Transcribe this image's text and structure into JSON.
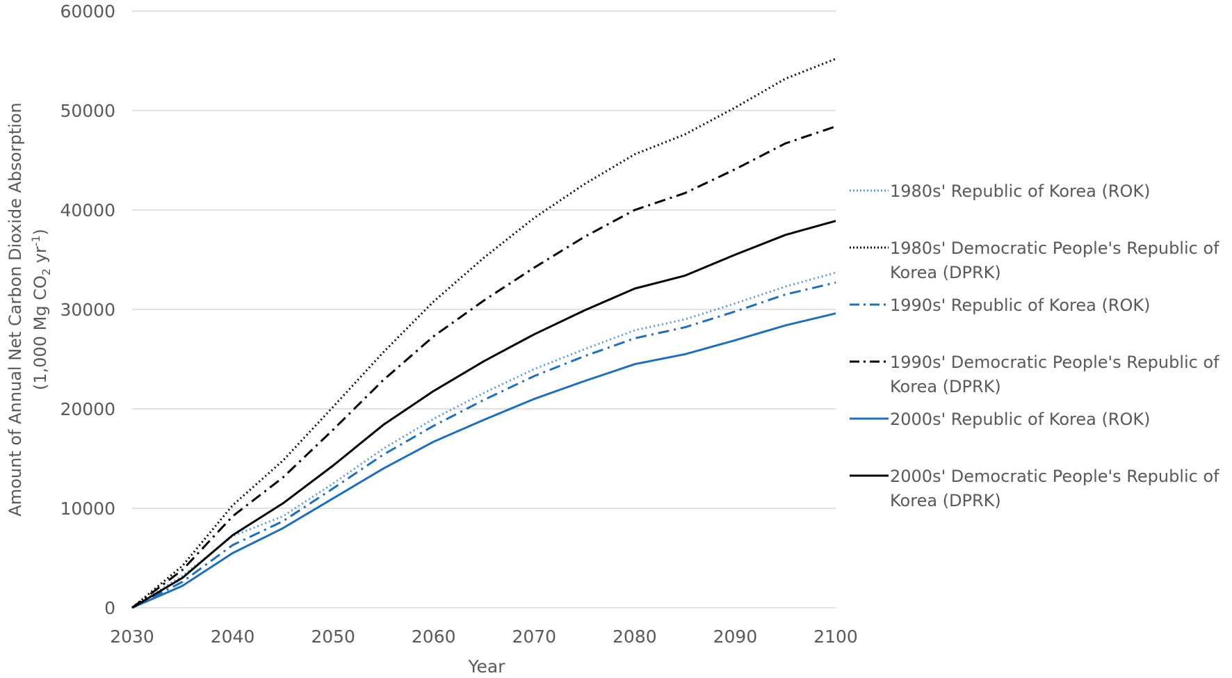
{
  "chart_data": {
    "type": "line",
    "title": "",
    "xlabel": "Year",
    "ylabel_line1": "Amount of Annual Net Carbon Dioxide Absorption",
    "ylabel_line2_pre": "(1,000 Mg CO",
    "ylabel_line2_sub": "2",
    "ylabel_line2_mid": " yr",
    "ylabel_line2_sup": "-1",
    "ylabel_line2_post": ")",
    "xlim": [
      2030,
      2100
    ],
    "ylim": [
      0,
      60000
    ],
    "x_ticks": [
      "2030",
      "2040",
      "2050",
      "2060",
      "2070",
      "2080",
      "2090",
      "2100"
    ],
    "y_ticks": [
      "0",
      "10000",
      "20000",
      "30000",
      "40000",
      "50000",
      "60000"
    ],
    "grid": true,
    "legend_position": "right",
    "x": [
      2030,
      2035,
      2040,
      2045,
      2050,
      2055,
      2060,
      2065,
      2070,
      2075,
      2080,
      2085,
      2090,
      2095,
      2100
    ],
    "series": [
      {
        "name": "1980s' Republic of Korea (ROK)",
        "color": "#5B9BD5",
        "dash": "dot",
        "values": [
          0,
          3200,
          7200,
          9200,
          12500,
          16000,
          19000,
          21600,
          24000,
          26000,
          27900,
          29000,
          30600,
          32300,
          33700
        ]
      },
      {
        "name": "1980s' Democratic People's Republic of Korea (DPRK)",
        "color": "#000000",
        "dash": "dot",
        "values": [
          0,
          4200,
          10300,
          14800,
          20200,
          25700,
          30800,
          35200,
          39200,
          42600,
          45600,
          47600,
          50300,
          53200,
          55200
        ]
      },
      {
        "name": "1990s' Republic of Korea (ROK)",
        "color": "#1F6FB8",
        "dash": "dashdot",
        "values": [
          0,
          2600,
          6300,
          8700,
          12000,
          15400,
          18300,
          20900,
          23300,
          25300,
          27100,
          28200,
          29800,
          31500,
          32700
        ]
      },
      {
        "name": "1990s' Democratic People's Republic of Korea (DPRK)",
        "color": "#000000",
        "dash": "dashdot",
        "values": [
          0,
          3800,
          9200,
          13100,
          17900,
          22900,
          27300,
          30900,
          34200,
          37300,
          40000,
          41700,
          44100,
          46700,
          48400
        ]
      },
      {
        "name": "2000s' Republic of Korea (ROK)",
        "color": "#1F6FB8",
        "dash": "solid",
        "values": [
          0,
          2200,
          5500,
          8000,
          11000,
          14000,
          16700,
          18900,
          21000,
          22800,
          24500,
          25500,
          26900,
          28400,
          29600
        ]
      },
      {
        "name": "2000s' Democratic People's Republic of Korea (DPRK)",
        "color": "#000000",
        "dash": "solid",
        "values": [
          0,
          3000,
          7300,
          10500,
          14300,
          18400,
          21800,
          24800,
          27500,
          29900,
          32100,
          33400,
          35500,
          37500,
          38900
        ]
      }
    ]
  }
}
